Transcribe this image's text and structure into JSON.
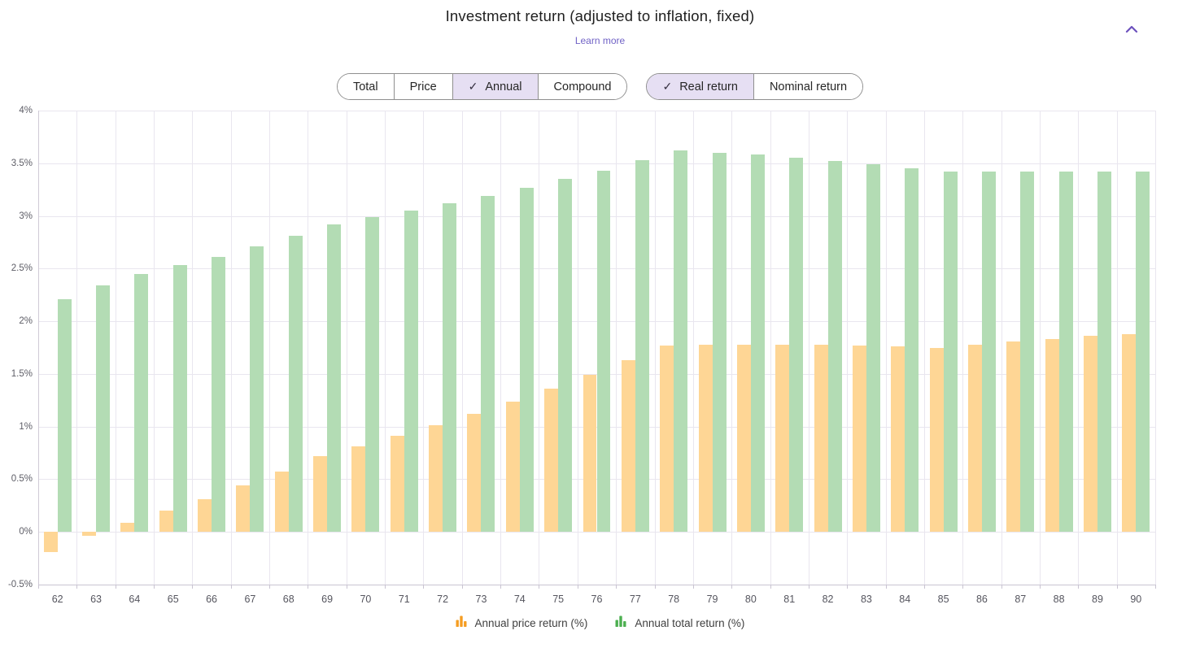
{
  "header": {
    "title": "Investment return (adjusted to inflation, fixed)",
    "learn_more_label": "Learn more",
    "collapse_icon": "chevron-up"
  },
  "toolbar": {
    "check_glyph": "✓",
    "return_type_group": {
      "options": [
        {
          "label": "Total",
          "selected": false
        },
        {
          "label": "Price",
          "selected": false
        },
        {
          "label": "Annual",
          "selected": true
        },
        {
          "label": "Compound",
          "selected": false
        }
      ]
    },
    "inflation_group": {
      "options": [
        {
          "label": "Real return",
          "selected": true
        },
        {
          "label": "Nominal return",
          "selected": false
        }
      ]
    }
  },
  "legend": {
    "items": [
      {
        "label": "Annual price return (%)",
        "icon": "bar-chart-icon",
        "color": "#f59d22"
      },
      {
        "label": "Annual total return (%)",
        "icon": "bar-chart-icon",
        "color": "#4caf50"
      }
    ]
  },
  "colors": {
    "bar_price": "#fed695",
    "bar_total": "#b3dcb4",
    "grid": "#e9e6ef",
    "axis": "#c9c4d2",
    "selected_bg": "#e6dff3",
    "accent_purple": "#6c51bd"
  },
  "chart_data": {
    "type": "bar",
    "title": "Investment return (adjusted to inflation, fixed)",
    "xlabel": "",
    "ylabel": "",
    "ylim": [
      -0.5,
      4
    ],
    "grid": true,
    "legend_position": "bottom",
    "y_ticks": [
      "4%",
      "3.5%",
      "3%",
      "2.5%",
      "2%",
      "1.5%",
      "1%",
      "0.5%",
      "0%",
      "-0.5%"
    ],
    "categories": [
      "62",
      "63",
      "64",
      "65",
      "66",
      "67",
      "68",
      "69",
      "70",
      "71",
      "72",
      "73",
      "74",
      "75",
      "76",
      "77",
      "78",
      "79",
      "80",
      "81",
      "82",
      "83",
      "84",
      "85",
      "86",
      "87",
      "88",
      "89",
      "90"
    ],
    "series": [
      {
        "name": "Annual price return (%)",
        "color": "#fed695",
        "values": [
          -0.19,
          -0.04,
          0.09,
          0.2,
          0.31,
          0.44,
          0.57,
          0.72,
          0.81,
          0.91,
          1.01,
          1.12,
          1.24,
          1.36,
          1.49,
          1.63,
          1.77,
          1.78,
          1.78,
          1.78,
          1.78,
          1.77,
          1.76,
          1.75,
          1.78,
          1.81,
          1.83,
          1.86,
          1.88
        ]
      },
      {
        "name": "Annual total return (%)",
        "color": "#b3dcb4",
        "values": [
          2.21,
          2.34,
          2.45,
          2.53,
          2.61,
          2.71,
          2.81,
          2.92,
          2.99,
          3.05,
          3.12,
          3.19,
          3.27,
          3.35,
          3.43,
          3.53,
          3.62,
          3.6,
          3.58,
          3.55,
          3.52,
          3.49,
          3.45,
          3.42,
          3.42,
          3.42,
          3.42,
          3.42,
          3.42
        ]
      }
    ]
  }
}
